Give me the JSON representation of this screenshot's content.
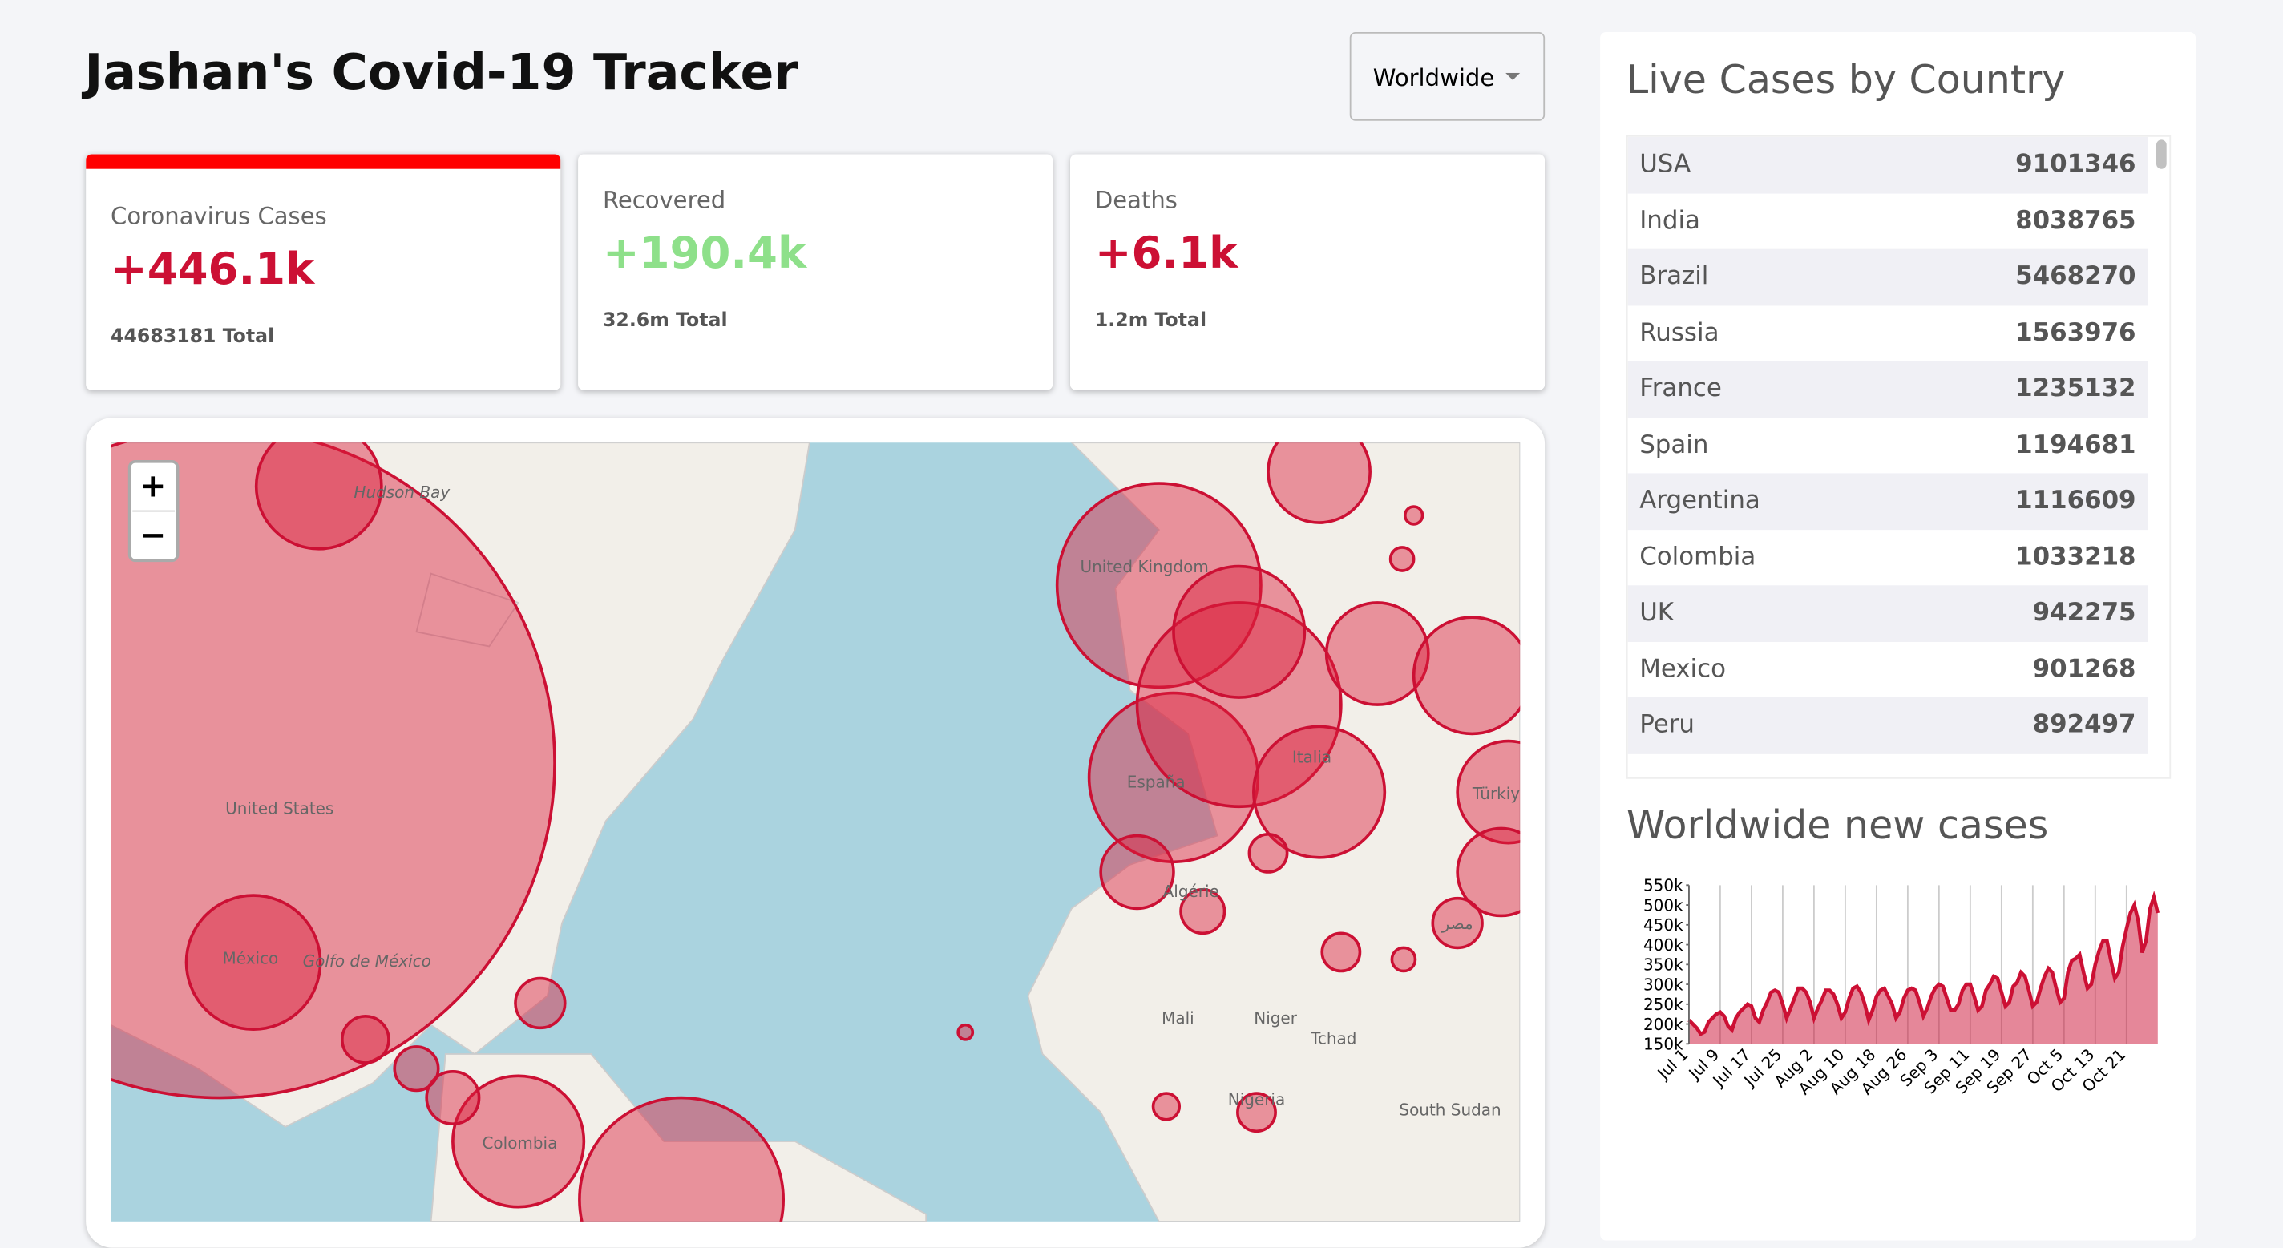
{
  "header": {
    "title": "Jashan's Covid-19 Tracker",
    "dropdown": "Worldwide"
  },
  "stats": [
    {
      "label": "Coronavirus Cases",
      "today": "+446.1k",
      "total": "44683181 Total"
    },
    {
      "label": "Recovered",
      "today": "+190.4k",
      "total": "32.6m Total"
    },
    {
      "label": "Deaths",
      "today": "+6.1k",
      "total": "1.2m Total"
    }
  ],
  "map": {
    "labels": [
      "United States",
      "México",
      "Golfo de México",
      "Hudson Bay",
      "Colombia",
      "United Kingdom",
      "España",
      "Italia",
      "Algérie",
      "Mali",
      "Niger",
      "Tchad",
      "Nigeria",
      "South Sudan",
      "Türkiye",
      "مصر"
    ]
  },
  "table": {
    "title": "Live Cases by Country",
    "rows": [
      {
        "country": "USA",
        "cases": 9101346
      },
      {
        "country": "India",
        "cases": 8038765
      },
      {
        "country": "Brazil",
        "cases": 5468270
      },
      {
        "country": "Russia",
        "cases": 1563976
      },
      {
        "country": "France",
        "cases": 1235132
      },
      {
        "country": "Spain",
        "cases": 1194681
      },
      {
        "country": "Argentina",
        "cases": 1116609
      },
      {
        "country": "Colombia",
        "cases": 1033218
      },
      {
        "country": "UK",
        "cases": 942275
      },
      {
        "country": "Mexico",
        "cases": 901268
      },
      {
        "country": "Peru",
        "cases": 892497
      }
    ]
  },
  "chart_data": {
    "type": "line",
    "title": "Worldwide new cases",
    "color": "#cc1034",
    "fill": "rgba(204,16,52,0.5)",
    "categories": [
      "Jul 1",
      null,
      null,
      null,
      null,
      null,
      null,
      null,
      "Jul 9",
      null,
      null,
      null,
      null,
      null,
      null,
      null,
      "Jul 17",
      null,
      null,
      null,
      null,
      null,
      null,
      null,
      "Jul 25",
      null,
      null,
      null,
      null,
      null,
      null,
      null,
      "Aug 2",
      null,
      null,
      null,
      null,
      null,
      null,
      null,
      "Aug 10",
      null,
      null,
      null,
      null,
      null,
      null,
      null,
      "Aug 18",
      null,
      null,
      null,
      null,
      null,
      null,
      null,
      "Aug 26",
      null,
      null,
      null,
      null,
      null,
      null,
      null,
      "Sep 3",
      null,
      null,
      null,
      null,
      null,
      null,
      null,
      "Sep 11",
      null,
      null,
      null,
      null,
      null,
      null,
      null,
      "Sep 19",
      null,
      null,
      null,
      null,
      null,
      null,
      null,
      "Sep 27",
      null,
      null,
      null,
      null,
      null,
      null,
      null,
      "Oct 5",
      null,
      null,
      null,
      null,
      null,
      null,
      null,
      "Oct 13",
      null,
      null,
      null,
      null,
      null,
      null,
      null,
      "Oct 21",
      null,
      null,
      null,
      null,
      null,
      null,
      null,
      null
    ],
    "values": [
      210000,
      200000,
      190000,
      175000,
      180000,
      205000,
      215000,
      225000,
      230000,
      220000,
      195000,
      185000,
      215000,
      230000,
      240000,
      250000,
      245000,
      215000,
      205000,
      235000,
      255000,
      280000,
      285000,
      280000,
      250000,
      215000,
      240000,
      265000,
      290000,
      290000,
      280000,
      255000,
      215000,
      240000,
      260000,
      285000,
      285000,
      275000,
      250000,
      215000,
      230000,
      265000,
      290000,
      295000,
      280000,
      250000,
      210000,
      235000,
      270000,
      285000,
      290000,
      270000,
      250000,
      215000,
      230000,
      265000,
      285000,
      290000,
      285000,
      255000,
      220000,
      240000,
      270000,
      290000,
      300000,
      295000,
      265000,
      235000,
      235000,
      250000,
      285000,
      300000,
      300000,
      270000,
      235000,
      245000,
      285000,
      300000,
      320000,
      315000,
      280000,
      245000,
      255000,
      295000,
      305000,
      330000,
      320000,
      285000,
      245000,
      255000,
      290000,
      320000,
      340000,
      330000,
      290000,
      255000,
      265000,
      330000,
      360000,
      365000,
      375000,
      330000,
      290000,
      300000,
      350000,
      385000,
      410000,
      410000,
      360000,
      315000,
      330000,
      395000,
      440000,
      480000,
      500000,
      460000,
      380000,
      410000,
      490000,
      520000,
      480000
    ],
    "ylim": [
      150000,
      550000
    ],
    "yticks": [
      {
        "value": 150000,
        "label": "150k"
      },
      {
        "value": 200000,
        "label": "200k"
      },
      {
        "value": 250000,
        "label": "250k"
      },
      {
        "value": 300000,
        "label": "300k"
      },
      {
        "value": 350000,
        "label": "350k"
      },
      {
        "value": 400000,
        "label": "400k"
      },
      {
        "value": 450000,
        "label": "450k"
      },
      {
        "value": 500000,
        "label": "500k"
      },
      {
        "value": 550000,
        "label": "550k"
      }
    ],
    "grid": true
  }
}
